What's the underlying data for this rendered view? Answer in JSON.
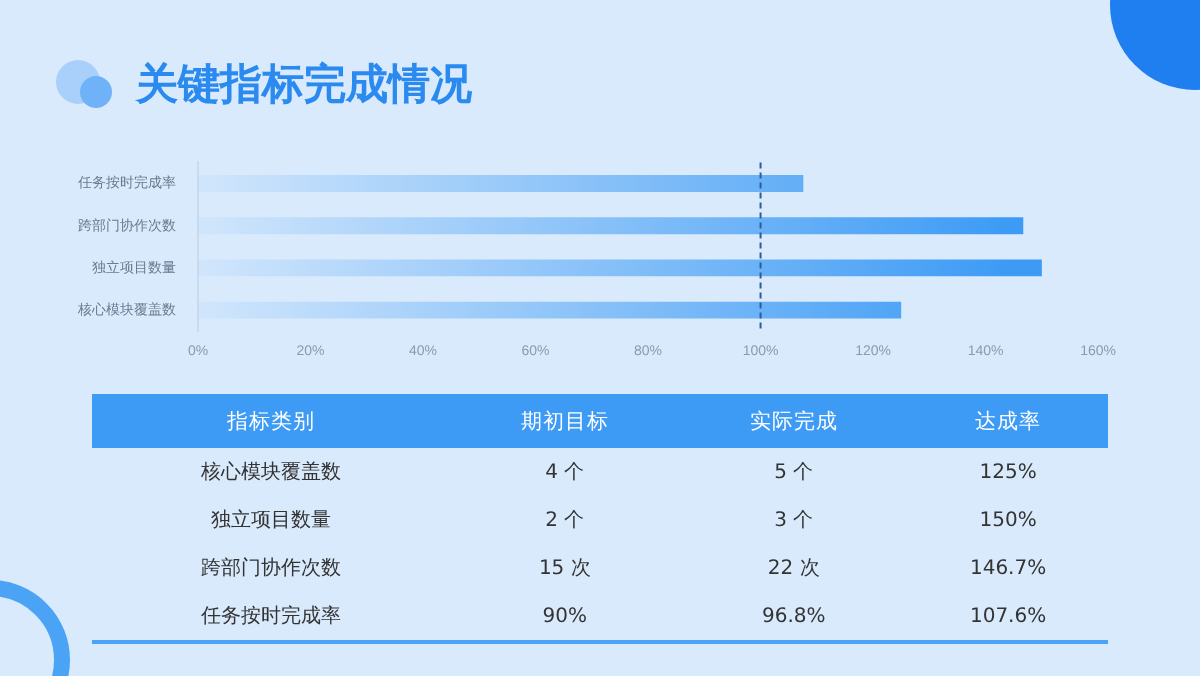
{
  "chart_data": [
    {
      "type": "bar",
      "title": "关键指标完成情况",
      "orientation": "horizontal",
      "categories": [
        "任务按时完成率",
        "跨部门协作次数",
        "独立项目数量",
        "核心模块覆盖数"
      ],
      "values": [
        107.6,
        146.7,
        150,
        125
      ],
      "color": "#3d9bf5",
      "xlim": [
        0,
        160
      ],
      "xticks": [
        {
          "value": 0,
          "label": "0%"
        },
        {
          "value": 20,
          "label": "20%"
        },
        {
          "value": 40,
          "label": "40%"
        },
        {
          "value": 60,
          "label": "60%"
        },
        {
          "value": 80,
          "label": "80%"
        },
        {
          "value": 100,
          "label": "100%"
        },
        {
          "value": 120,
          "label": "120%"
        },
        {
          "value": 140,
          "label": "140%"
        },
        {
          "value": 160,
          "label": "160%"
        }
      ],
      "ref_lines": [
        {
          "axis": "x",
          "value": 100,
          "color": "#2a5d9a",
          "line_style": "dashed"
        }
      ],
      "grid": false,
      "legend": false
    },
    {
      "type": "other",
      "categories": [
        "指标类别",
        "期初目标",
        "实际完成",
        "达成率"
      ],
      "annotations": [
        "核心模块覆盖数",
        "4 个",
        "5 个",
        "125%",
        "独立项目数量",
        "2 个",
        "3 个",
        "150%",
        "跨部门协作次数",
        "15 次",
        "22 次",
        "146.7%",
        "任务按时完成率",
        "90%",
        "96.8%",
        "107.6%"
      ]
    }
  ]
}
